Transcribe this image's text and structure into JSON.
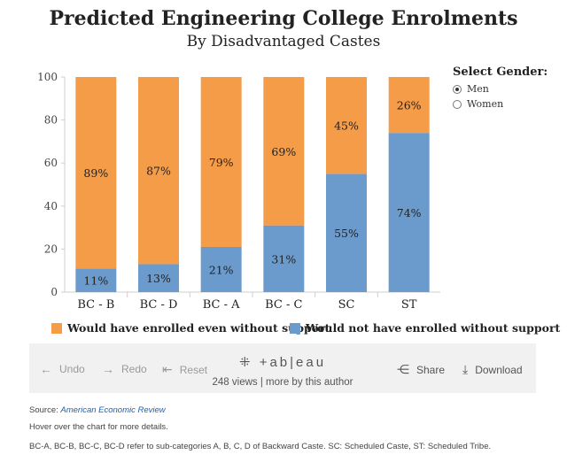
{
  "page": {
    "title": "Predicted Engineering College Enrolments",
    "subtitle": "By Disadvantaged Castes"
  },
  "gender_filter": {
    "title": "Select Gender:",
    "options": [
      "Men",
      "Women"
    ],
    "selected": "Men"
  },
  "legend": {
    "items": [
      {
        "label": "Would have enrolled even without support",
        "color": "#f59c49"
      },
      {
        "label": "Would not have enrolled without support",
        "color": "#6b9bcd"
      }
    ]
  },
  "toolbar": {
    "undo": "Undo",
    "redo": "Redo",
    "reset": "Reset",
    "logo": "+ab|eau",
    "views": "248 views | more by this author",
    "share": "Share",
    "download": "Download"
  },
  "footer": {
    "source_prefix": "Source: ",
    "source_link": "American Economic Review",
    "hover_note": "Hover over the chart for more details.",
    "caste_note": "BC-A, BC-B, BC-C, BC-D refer to sub-categories A, B, C, D of Backward Caste. SC: Scheduled Caste, ST: Scheduled Tribe."
  },
  "chart_data": {
    "type": "bar",
    "stacked": true,
    "categories": [
      "BC - B",
      "BC - D",
      "BC - A",
      "BC - C",
      "SC",
      "ST"
    ],
    "series": [
      {
        "name": "Would not have enrolled without support",
        "values": [
          11,
          13,
          21,
          31,
          55,
          74
        ],
        "labels": [
          "11%",
          "13%",
          "21%",
          "31%",
          "55%",
          "74%"
        ],
        "color": "#6b9bcd"
      },
      {
        "name": "Would have enrolled even without support",
        "values": [
          89,
          87,
          79,
          69,
          45,
          26
        ],
        "labels": [
          "89%",
          "87%",
          "79%",
          "69%",
          "45%",
          "26%"
        ],
        "color": "#f59c49"
      }
    ],
    "ylim": [
      0,
      100
    ],
    "yticks": [
      0,
      20,
      40,
      60,
      80,
      100
    ],
    "xlabel": "",
    "ylabel": "",
    "grid": false
  }
}
